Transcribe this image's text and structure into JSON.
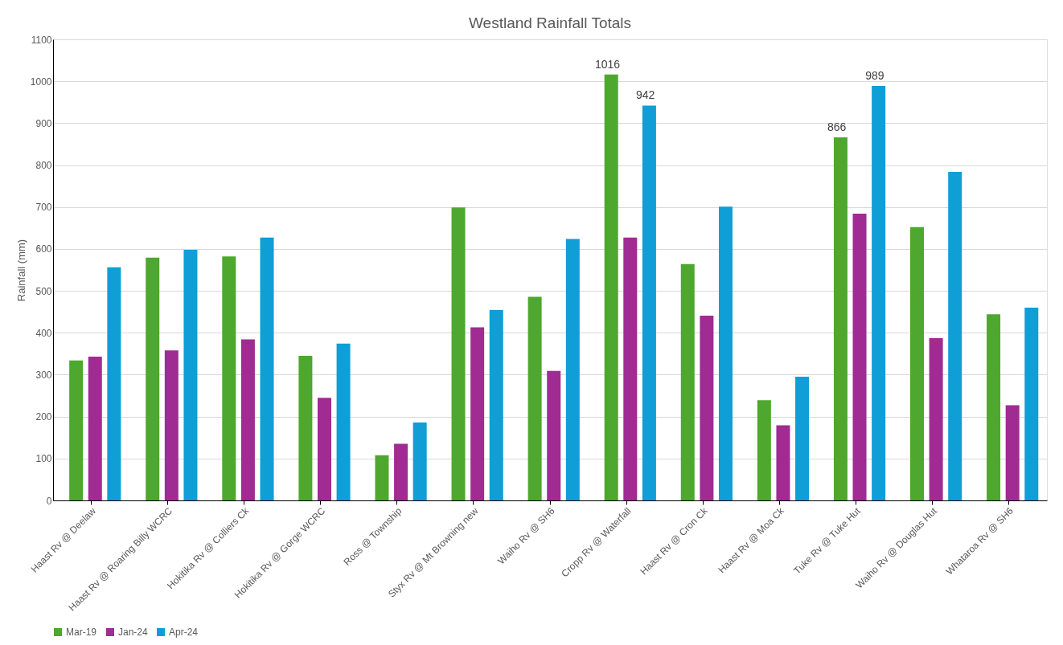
{
  "chart_data": {
    "type": "bar",
    "title": "Westland Rainfall Totals",
    "ylabel": "Rainfall (mm)",
    "categories": [
      "Haast Rv @ Deelaw",
      "Haast Rv @ Roaring Billy WCRC",
      "Hokitika Rv @ Colliers Ck",
      "Hokitika Rv @ Gorge WCRC",
      "Ross @ Township",
      "Styx Rv @ Mt Browning new",
      "Waiho Rv @ SH6",
      "Cropp Rv @ Waterfall",
      "Haast Rv @ Cron Ck",
      "Haast Rv @ Moa Ck",
      "Tuke Rv @ Tuke Hut",
      "Waiho Rv @ Douglas Hut",
      "Whataroa Rv @ SH6"
    ],
    "series": [
      {
        "name": "Mar-19",
        "color": "#4ea72e",
        "values": [
          334,
          579,
          582,
          345,
          108,
          699,
          486,
          1016,
          564,
          239,
          866,
          652,
          444
        ],
        "value_labels": [
          null,
          null,
          null,
          null,
          null,
          null,
          null,
          "1016",
          null,
          null,
          "866",
          null,
          null
        ]
      },
      {
        "name": "Jan-24",
        "color": "#a02b93",
        "values": [
          343,
          358,
          384,
          245,
          135,
          413,
          309,
          627,
          441,
          179,
          684,
          387,
          227
        ]
      },
      {
        "name": "Apr-24",
        "color": "#0f9ed5",
        "values": [
          556,
          598,
          627,
          374,
          186,
          454,
          624,
          942,
          701,
          295,
          989,
          784,
          460
        ],
        "value_labels": [
          null,
          null,
          null,
          null,
          null,
          null,
          null,
          "942",
          null,
          null,
          "989",
          null,
          null
        ]
      }
    ],
    "ylim": [
      0,
      1100
    ],
    "yticks": [
      0,
      100,
      200,
      300,
      400,
      500,
      600,
      700,
      800,
      900,
      1000,
      1100
    ],
    "grid": "y",
    "legend": "bottom"
  }
}
